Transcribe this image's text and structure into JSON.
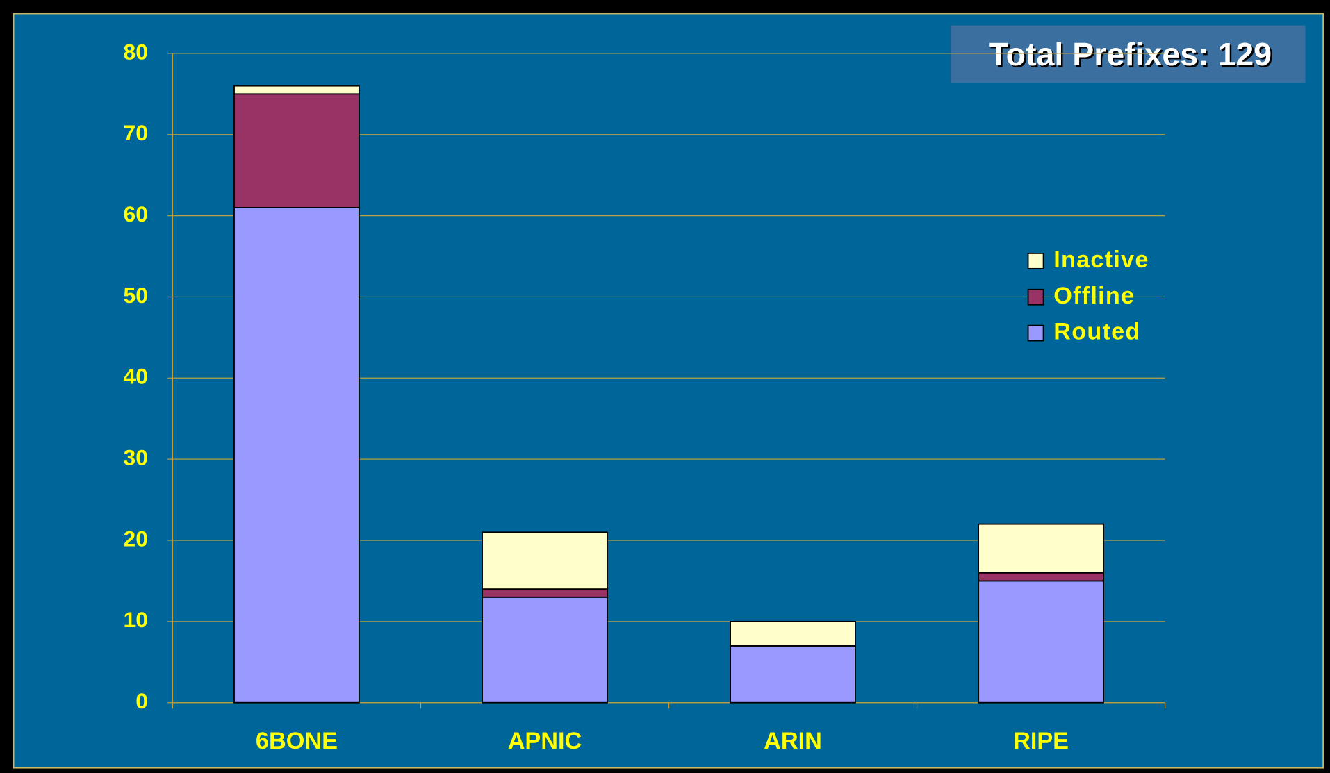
{
  "chart_data": {
    "type": "stacked_bar",
    "annotation": "Total Prefixes: 129",
    "categories": [
      "6BONE",
      "APNIC",
      "ARIN",
      "RIPE"
    ],
    "series": [
      {
        "name": "Routed",
        "color": "#9999ff",
        "values": [
          61,
          13,
          7,
          15
        ]
      },
      {
        "name": "Offline",
        "color": "#993366",
        "values": [
          14,
          1,
          0,
          1
        ]
      },
      {
        "name": "Inactive",
        "color": "#ffffcc",
        "values": [
          1,
          7,
          3,
          6
        ]
      }
    ],
    "ylim": [
      0,
      80
    ],
    "yticks": [
      0,
      10,
      20,
      30,
      40,
      50,
      60,
      70,
      80
    ],
    "grid": true,
    "legend": "right"
  }
}
